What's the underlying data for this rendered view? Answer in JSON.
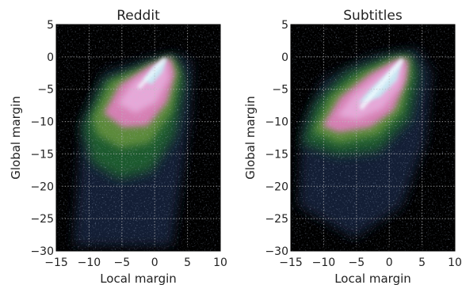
{
  "chart_data": [
    {
      "type": "heatmap",
      "title": "Reddit",
      "xlabel": "Local margin",
      "ylabel": "Global margin",
      "xlim": [
        -15,
        10
      ],
      "ylim": [
        -30,
        5
      ],
      "xticks": [
        "−15",
        "−10",
        "−5",
        "0",
        "5",
        "10"
      ],
      "yticks": [
        "5",
        "0",
        "−5",
        "−10",
        "−15",
        "−20",
        "−25",
        "−30"
      ],
      "grid": true,
      "colormap": "cubehelix (black → green → pink → white)",
      "background": "#000000",
      "density_regions": [
        {
          "level": "low",
          "x_range": [
            -13,
            6
          ],
          "y_range": [
            -30,
            2
          ],
          "note": "faint tail extending down to -30 between x -10 and 5"
        },
        {
          "level": "mid",
          "x_range": [
            -10,
            4
          ],
          "y_range": [
            -17,
            1
          ]
        },
        {
          "level": "high",
          "x_range": [
            -8,
            3
          ],
          "y_range": [
            -11,
            0.5
          ]
        },
        {
          "level": "peak",
          "x_range": [
            -4,
            0
          ],
          "y_range": [
            -4,
            0
          ],
          "note": "bright diagonal ridge along y = x up to (0, 0)"
        }
      ]
    },
    {
      "type": "heatmap",
      "title": "Subtitles",
      "xlabel": "Local margin",
      "ylabel": "Global margin",
      "xlim": [
        -15,
        10
      ],
      "ylim": [
        -30,
        5
      ],
      "xticks": [
        "−15",
        "−10",
        "−5",
        "0",
        "5",
        "10"
      ],
      "yticks": [
        "5",
        "0",
        "−5",
        "−10",
        "−15",
        "−20",
        "−25",
        "−30"
      ],
      "grid": true,
      "colormap": "cubehelix (black → green → pink → white)",
      "background": "#000000",
      "density_regions": [
        {
          "level": "low",
          "x_range": [
            -14,
            8
          ],
          "y_range": [
            -30,
            3
          ],
          "note": "faint scatter below -20"
        },
        {
          "level": "mid",
          "x_range": [
            -12,
            5
          ],
          "y_range": [
            -16,
            1
          ]
        },
        {
          "level": "high",
          "x_range": [
            -9,
            4
          ],
          "y_range": [
            -12,
            0.5
          ]
        },
        {
          "level": "peak",
          "x_range": [
            -5,
            0
          ],
          "y_range": [
            -5,
            0
          ],
          "note": "bright diagonal ridge along y = x up to (0, 0)"
        }
      ]
    }
  ]
}
